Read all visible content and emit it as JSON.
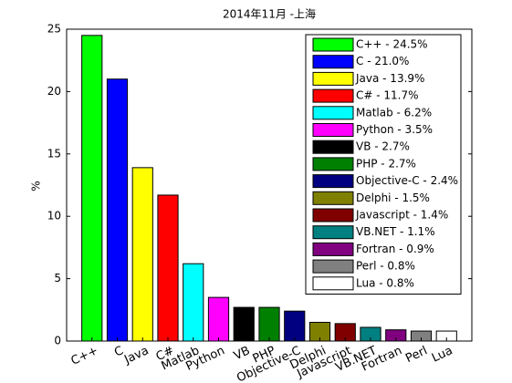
{
  "chart_data": {
    "type": "bar",
    "title": "2014年11月 -上海",
    "y_label": "%",
    "categories": [
      "C++",
      "C",
      "Java",
      "C#",
      "Matlab",
      "Python",
      "VB",
      "PHP",
      "Objective-C",
      "Delphi",
      "Javascript",
      "VB.NET",
      "Fortran",
      "Perl",
      "Lua"
    ],
    "values": [
      24.5,
      21.0,
      13.9,
      11.7,
      6.2,
      3.5,
      2.7,
      2.7,
      2.4,
      1.5,
      1.4,
      1.1,
      0.9,
      0.8,
      0.8
    ],
    "colors": [
      "#00ff00",
      "#0000ff",
      "#ffff00",
      "#ff0000",
      "#00ffff",
      "#ff00ff",
      "#000000",
      "#008000",
      "#000080",
      "#808000",
      "#800000",
      "#008080",
      "#800080",
      "#808080",
      "#ffffff"
    ],
    "legend": [
      "C++ - 24.5%",
      "C - 21.0%",
      "Java - 13.9%",
      "C# - 11.7%",
      "Matlab - 6.2%",
      "Python - 3.5%",
      "VB - 2.7%",
      "PHP - 2.7%",
      "Objective-C - 2.4%",
      "Delphi - 1.5%",
      "Javascript - 1.4%",
      "VB.NET - 1.1%",
      "Fortran - 0.9%",
      "Perl - 0.8%",
      "Lua - 0.8%"
    ],
    "legend_position": "upper right",
    "ylim": [
      0,
      25
    ],
    "yticks": [
      0,
      5,
      10,
      15,
      20,
      25
    ]
  }
}
